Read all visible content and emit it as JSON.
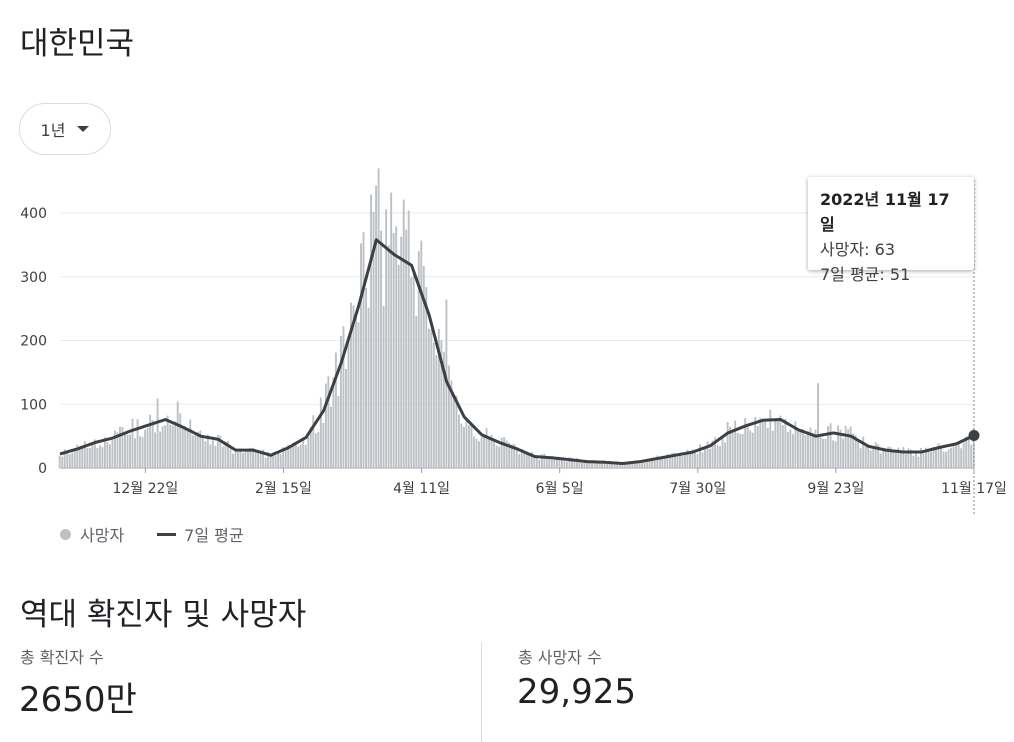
{
  "header": {
    "title": "대한민국"
  },
  "range_selector": {
    "label": "1년"
  },
  "tooltip": {
    "date": "2022년 11월 17일",
    "deaths": "사망자: 63",
    "avg": "7일 평균: 51"
  },
  "legend": {
    "deaths": "사망자",
    "avg": "7일 평균"
  },
  "cumulative": {
    "title": "역대 확진자 및 사망자",
    "cases_label": "총 확진자 수",
    "cases_value": "2650만",
    "deaths_label": "총 사망자 수",
    "deaths_value": "29,925"
  },
  "colors": {
    "bars": "#bdc1c6",
    "avg_line": "#3c4043",
    "grid": "#e8eaed"
  },
  "chart_data": {
    "type": "bar",
    "start_date": "2021-11-18",
    "end_date": "2022-11-17",
    "ylim": [
      0,
      400
    ],
    "yticks": [
      "0",
      "100",
      "200",
      "300",
      "400"
    ],
    "xticks": [
      {
        "date": "2021-12-22",
        "label": "12월 22일"
      },
      {
        "date": "2022-02-15",
        "label": "2월 15일"
      },
      {
        "date": "2022-04-11",
        "label": "4월 11일"
      },
      {
        "date": "2022-06-05",
        "label": "6월 5일"
      },
      {
        "date": "2022-07-30",
        "label": "7월 30일"
      },
      {
        "date": "2022-09-23",
        "label": "9월 23일"
      },
      {
        "date": "2022-11-17",
        "label": "11월 17일"
      }
    ],
    "series": [
      {
        "name": "7일 평균",
        "role": "line",
        "points": [
          {
            "date": "2021-11-18",
            "value": 22
          },
          {
            "date": "2021-11-25",
            "value": 30
          },
          {
            "date": "2021-12-02",
            "value": 40
          },
          {
            "date": "2021-12-09",
            "value": 47
          },
          {
            "date": "2021-12-16",
            "value": 58
          },
          {
            "date": "2021-12-23",
            "value": 67
          },
          {
            "date": "2021-12-30",
            "value": 76
          },
          {
            "date": "2022-01-06",
            "value": 64
          },
          {
            "date": "2022-01-13",
            "value": 50
          },
          {
            "date": "2022-01-20",
            "value": 45
          },
          {
            "date": "2022-01-27",
            "value": 28
          },
          {
            "date": "2022-02-03",
            "value": 28
          },
          {
            "date": "2022-02-10",
            "value": 20
          },
          {
            "date": "2022-02-17",
            "value": 32
          },
          {
            "date": "2022-02-24",
            "value": 48
          },
          {
            "date": "2022-03-03",
            "value": 90
          },
          {
            "date": "2022-03-10",
            "value": 165
          },
          {
            "date": "2022-03-17",
            "value": 255
          },
          {
            "date": "2022-03-24",
            "value": 358
          },
          {
            "date": "2022-03-31",
            "value": 335
          },
          {
            "date": "2022-04-07",
            "value": 318
          },
          {
            "date": "2022-04-14",
            "value": 240
          },
          {
            "date": "2022-04-21",
            "value": 135
          },
          {
            "date": "2022-04-28",
            "value": 80
          },
          {
            "date": "2022-05-05",
            "value": 52
          },
          {
            "date": "2022-05-12",
            "value": 40
          },
          {
            "date": "2022-05-19",
            "value": 30
          },
          {
            "date": "2022-05-26",
            "value": 18
          },
          {
            "date": "2022-06-02",
            "value": 16
          },
          {
            "date": "2022-06-09",
            "value": 13
          },
          {
            "date": "2022-06-16",
            "value": 10
          },
          {
            "date": "2022-06-23",
            "value": 9
          },
          {
            "date": "2022-06-30",
            "value": 7
          },
          {
            "date": "2022-07-07",
            "value": 10
          },
          {
            "date": "2022-07-14",
            "value": 15
          },
          {
            "date": "2022-07-21",
            "value": 20
          },
          {
            "date": "2022-07-28",
            "value": 25
          },
          {
            "date": "2022-08-04",
            "value": 35
          },
          {
            "date": "2022-08-11",
            "value": 55
          },
          {
            "date": "2022-08-18",
            "value": 66
          },
          {
            "date": "2022-08-25",
            "value": 75
          },
          {
            "date": "2022-09-01",
            "value": 76
          },
          {
            "date": "2022-09-08",
            "value": 60
          },
          {
            "date": "2022-09-15",
            "value": 50
          },
          {
            "date": "2022-09-22",
            "value": 55
          },
          {
            "date": "2022-09-29",
            "value": 50
          },
          {
            "date": "2022-10-06",
            "value": 34
          },
          {
            "date": "2022-10-13",
            "value": 28
          },
          {
            "date": "2022-10-20",
            "value": 25
          },
          {
            "date": "2022-10-27",
            "value": 25
          },
          {
            "date": "2022-11-03",
            "value": 32
          },
          {
            "date": "2022-11-10",
            "value": 38
          },
          {
            "date": "2022-11-17",
            "value": 51
          }
        ]
      },
      {
        "name": "사망자",
        "role": "bars",
        "note": "daily bars vary around the 7-day average",
        "spikes": [
          {
            "date": "2021-12-27",
            "value": 109
          },
          {
            "date": "2022-01-04",
            "value": 104
          },
          {
            "date": "2022-03-22",
            "value": 429
          },
          {
            "date": "2022-03-25",
            "value": 470
          },
          {
            "date": "2022-03-30",
            "value": 432
          },
          {
            "date": "2022-04-05",
            "value": 374
          },
          {
            "date": "2022-04-21",
            "value": 264
          },
          {
            "date": "2022-09-16",
            "value": 133
          },
          {
            "date": "2022-11-17",
            "value": 63
          }
        ]
      }
    ]
  }
}
